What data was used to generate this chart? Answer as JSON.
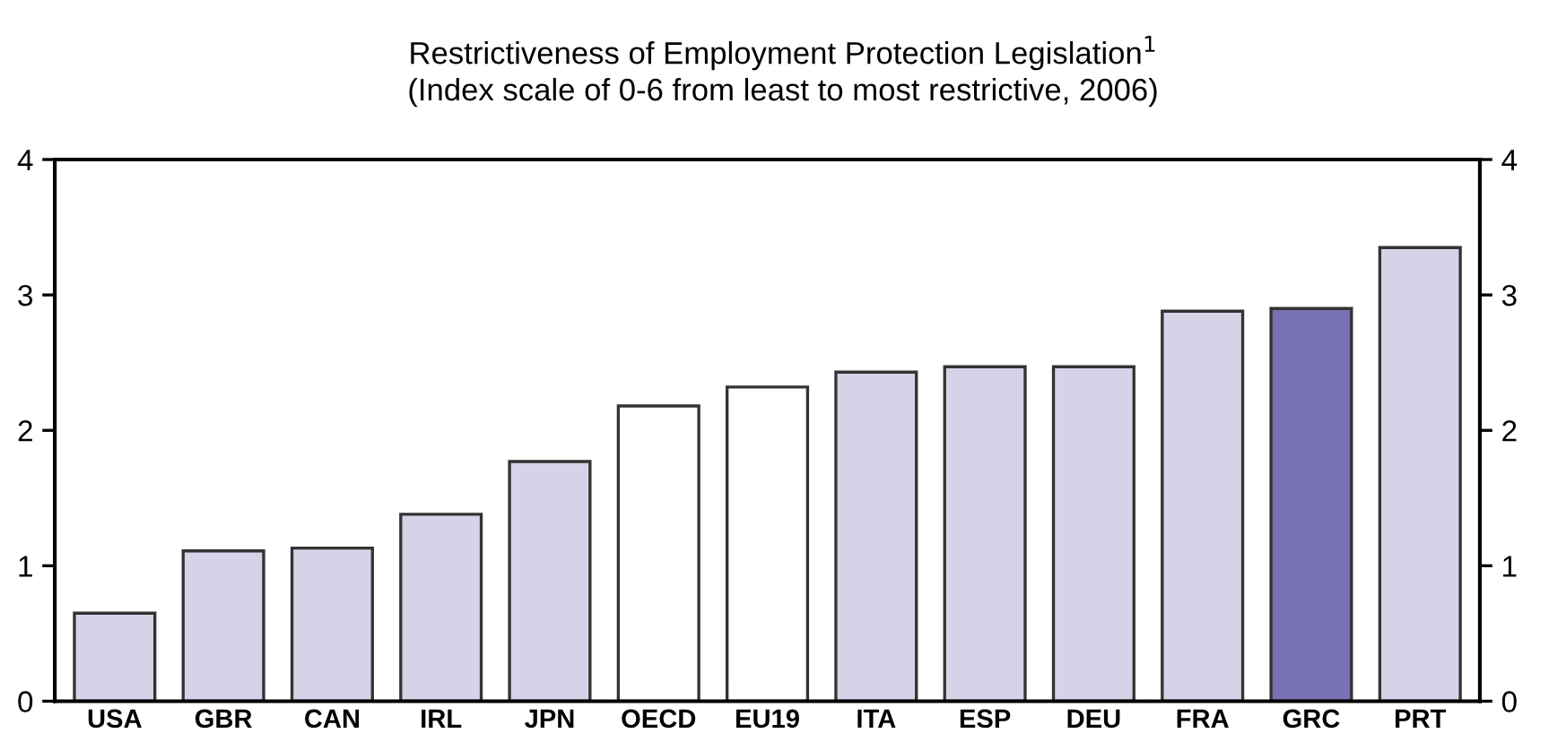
{
  "chart_data": {
    "type": "bar",
    "title": "Restrictiveness of Employment Protection Legislation$^{1}$",
    "subtitle": "(Index scale of 0-6 from least to most restrictive, 2006)",
    "categories": [
      "USA",
      "GBR",
      "CAN",
      "IRL",
      "JPN",
      "OECD",
      "EU19",
      "ITA",
      "ESP",
      "DEU",
      "FRA",
      "GRC",
      "PRT"
    ],
    "values": [
      0.65,
      1.11,
      1.13,
      1.38,
      1.77,
      2.18,
      2.32,
      2.43,
      2.47,
      2.47,
      2.88,
      2.9,
      3.35
    ],
    "colors": [
      "#d6d3e9",
      "#d6d3e9",
      "#d6d3e9",
      "#d6d3e9",
      "#d6d3e9",
      "#ffffff",
      "#ffffff",
      "#d6d3e9",
      "#d6d3e9",
      "#d6d3e9",
      "#d6d3e9",
      "#7871b2",
      "#d6d3e9"
    ],
    "ylim": [
      0,
      4
    ],
    "yticks": [
      0,
      1,
      2,
      3,
      4
    ],
    "y2lim": [
      0,
      4
    ],
    "y2ticks": [
      0,
      1,
      2,
      3,
      4
    ],
    "grid": false,
    "legend": false
  }
}
